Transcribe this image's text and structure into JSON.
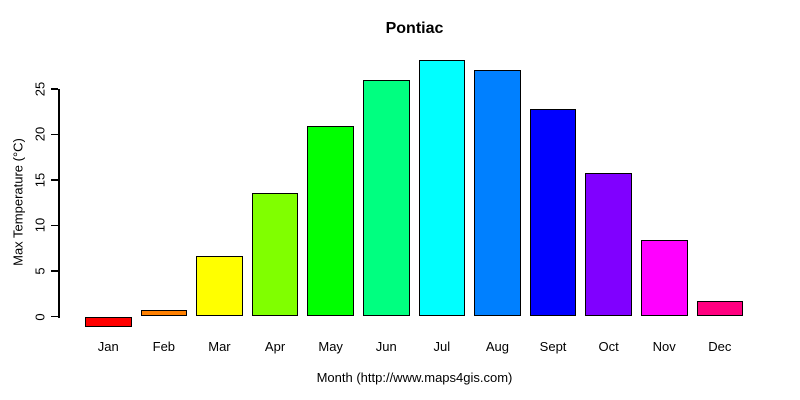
{
  "title": "Pontiac",
  "colors": {
    "background": "#FFFFFF",
    "axis": "#000000",
    "text": "#000000",
    "bar_border": "#000000"
  },
  "chart_data": {
    "type": "bar",
    "title": "Pontiac",
    "xlabel": "Month (http://www.maps4gis.com)",
    "ylabel": "Max Temperature (°C)",
    "categories": [
      "Jan",
      "Feb",
      "Mar",
      "Apr",
      "May",
      "Jun",
      "Jul",
      "Aug",
      "Sept",
      "Oct",
      "Nov",
      "Dec"
    ],
    "values": [
      -1.2,
      0.7,
      6.6,
      13.6,
      20.9,
      26.0,
      28.2,
      27.1,
      22.8,
      15.8,
      8.4,
      1.7
    ],
    "bar_colors": [
      "#FF0000",
      "#FF8000",
      "#FFFF00",
      "#80FF00",
      "#00FF00",
      "#00FF80",
      "#00FFFF",
      "#0080FF",
      "#0000FF",
      "#8000FF",
      "#FF00FF",
      "#FF0080"
    ],
    "yticks": [
      0,
      5,
      10,
      15,
      20,
      25
    ],
    "ytick_labels": [
      "0",
      "5",
      "10",
      "15",
      "20",
      "25"
    ],
    "ylim": [
      -2,
      29
    ],
    "grid": false,
    "legend": false
  }
}
